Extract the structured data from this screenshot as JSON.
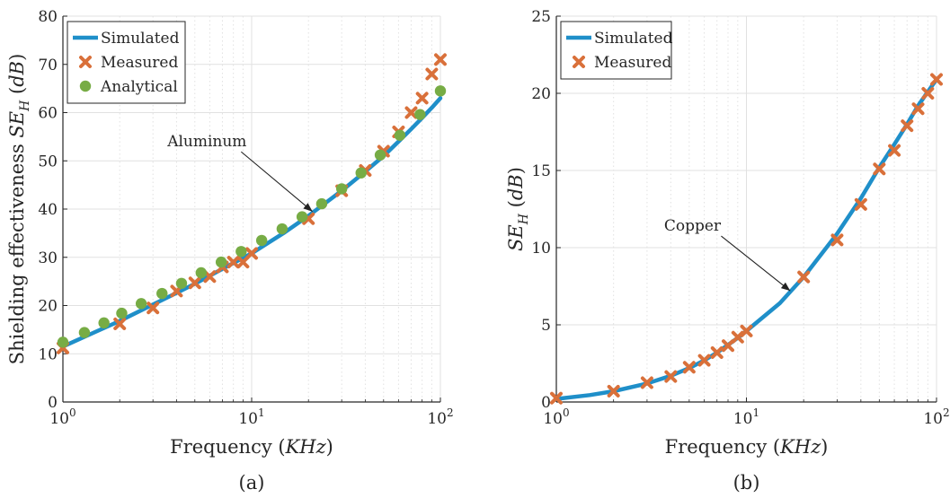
{
  "colors": {
    "simulated": "#1f8fc9",
    "measured": "#d9703a",
    "analytical": "#77ac45",
    "grid": "#e1e1e1",
    "axis": "#262626"
  },
  "chart_data": [
    {
      "panel_label": "(a)",
      "type": "line",
      "xscale": "log",
      "xlim": [
        1,
        100
      ],
      "ylim": [
        0,
        80
      ],
      "xticks": [
        1,
        10,
        100
      ],
      "xtick_labels": [
        {
          "base": "10",
          "exp": "0"
        },
        {
          "base": "10",
          "exp": "1"
        },
        {
          "base": "10",
          "exp": "2"
        }
      ],
      "yticks": [
        0,
        10,
        20,
        30,
        40,
        50,
        60,
        70,
        80
      ],
      "xlabel": {
        "text": "Frequency (",
        "math": "KHz",
        "tail": ")"
      },
      "ylabel": {
        "text": "Shielding effectiveness ",
        "math": "SE",
        "sub": "H",
        "mid": " (",
        "math2": "dB",
        "tail": ")"
      },
      "grid": true,
      "legend_position": "top-left",
      "annotation": {
        "text": "Aluminum",
        "point": [
          21,
          39.5
        ],
        "label_at": [
          5.8,
          53
        ]
      },
      "series": [
        {
          "name": "Simulated",
          "kind": "line",
          "x": [
            1,
            1.5,
            2,
            3,
            4,
            5,
            7,
            10,
            15,
            20,
            30,
            40,
            50,
            60,
            70,
            80,
            90,
            100
          ],
          "y": [
            11.5,
            14.6,
            16.8,
            20.2,
            22.6,
            24.5,
            27.6,
            30.8,
            35.2,
            38.6,
            43.8,
            47.8,
            51.0,
            54.0,
            56.6,
            58.9,
            61.0,
            63.0
          ]
        },
        {
          "name": "Measured",
          "kind": "x",
          "x": [
            1,
            2,
            3,
            4,
            5,
            6,
            7,
            8,
            9,
            10,
            20,
            30,
            40,
            50,
            60,
            70,
            80,
            90,
            100
          ],
          "y": [
            11.2,
            16.2,
            19.5,
            23.0,
            24.7,
            26.0,
            28.0,
            29.0,
            29.0,
            30.8,
            38.0,
            43.8,
            48.0,
            52.0,
            56.0,
            60.0,
            63.0,
            68.0,
            71.0
          ]
        },
        {
          "name": "Analytical",
          "kind": "dot",
          "x": [
            1,
            1.3,
            1.65,
            2.05,
            2.6,
            3.35,
            4.25,
            5.4,
            6.9,
            8.8,
            11.3,
            14.5,
            18.5,
            23.5,
            30,
            38,
            48,
            61,
            78,
            100
          ],
          "y": [
            12.4,
            14.4,
            16.4,
            18.4,
            20.4,
            22.5,
            24.6,
            26.8,
            29.0,
            31.2,
            33.5,
            35.9,
            38.4,
            41.1,
            44.2,
            47.5,
            51.2,
            55.3,
            59.6,
            64.5
          ]
        }
      ]
    },
    {
      "panel_label": "(b)",
      "type": "line",
      "xscale": "log",
      "xlim": [
        1,
        100
      ],
      "ylim": [
        0,
        25
      ],
      "xticks": [
        1,
        10,
        100
      ],
      "xtick_labels": [
        {
          "base": "10",
          "exp": "0"
        },
        {
          "base": "10",
          "exp": "1"
        },
        {
          "base": "10",
          "exp": "2"
        }
      ],
      "yticks": [
        0,
        5,
        10,
        15,
        20,
        25
      ],
      "xlabel": {
        "text": "Frequency (",
        "math": "KHz",
        "tail": ")"
      },
      "ylabel": {
        "text": "",
        "math": "SE",
        "sub": "H",
        "mid": " (",
        "math2": "dB",
        "tail": ")"
      },
      "grid": true,
      "legend_position": "top-left",
      "annotation": {
        "text": "Copper",
        "point": [
          17,
          7.2
        ],
        "label_at": [
          5.2,
          11.1
        ]
      },
      "series": [
        {
          "name": "Simulated",
          "kind": "line",
          "x": [
            1,
            1.5,
            2,
            3,
            4,
            5,
            6,
            7,
            8,
            9,
            10,
            15,
            20,
            30,
            40,
            50,
            60,
            70,
            80,
            90,
            100
          ],
          "y": [
            0.2,
            0.45,
            0.7,
            1.2,
            1.7,
            2.2,
            2.7,
            3.2,
            3.7,
            4.15,
            4.6,
            6.4,
            8.1,
            10.9,
            13.2,
            15.2,
            16.7,
            18.0,
            19.2,
            20.1,
            20.9
          ]
        },
        {
          "name": "Measured",
          "kind": "x",
          "x": [
            1,
            2,
            3,
            4,
            5,
            6,
            7,
            8,
            9,
            10,
            20,
            30,
            40,
            50,
            60,
            70,
            80,
            90,
            100
          ],
          "y": [
            0.25,
            0.7,
            1.25,
            1.65,
            2.25,
            2.7,
            3.2,
            3.65,
            4.2,
            4.6,
            8.1,
            10.5,
            12.8,
            15.1,
            16.3,
            17.9,
            19.0,
            20.0,
            20.9
          ]
        }
      ]
    }
  ]
}
